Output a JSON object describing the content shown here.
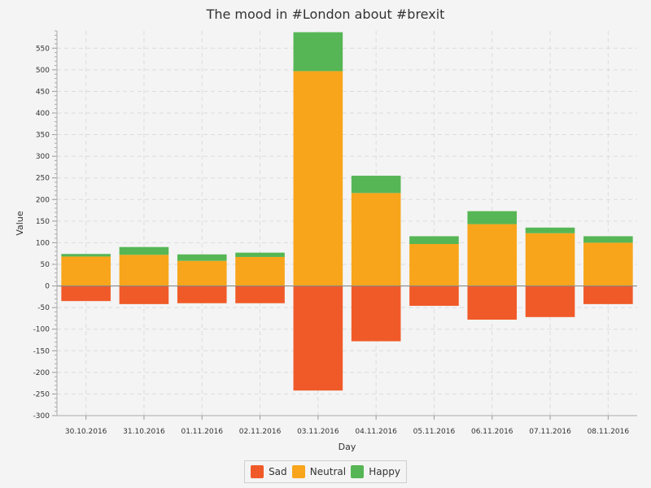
{
  "chart_data": {
    "type": "bar",
    "stacked": true,
    "title": "The mood in #London about #brexit",
    "xlabel": "Day",
    "ylabel": "Value",
    "ylim": [
      -300,
      590
    ],
    "y_tick_step": 50,
    "grid": true,
    "legend_position": "bottom",
    "categories": [
      "30.10.2016",
      "31.10.2016",
      "01.11.2016",
      "02.11.2016",
      "03.11.2016",
      "04.11.2016",
      "05.11.2016",
      "06.11.2016",
      "07.11.2016",
      "08.11.2016"
    ],
    "series": [
      {
        "name": "Sad",
        "color": "#f05a28",
        "values": [
          -35,
          -42,
          -40,
          -40,
          -242,
          -128,
          -46,
          -78,
          -72,
          -42
        ]
      },
      {
        "name": "Neutral",
        "color": "#f8a51b",
        "values": [
          68,
          72,
          58,
          67,
          497,
          215,
          97,
          143,
          122,
          100
        ]
      },
      {
        "name": "Happy",
        "color": "#56b655",
        "values": [
          6,
          18,
          15,
          10,
          90,
          40,
          18,
          30,
          13,
          15
        ]
      }
    ]
  }
}
